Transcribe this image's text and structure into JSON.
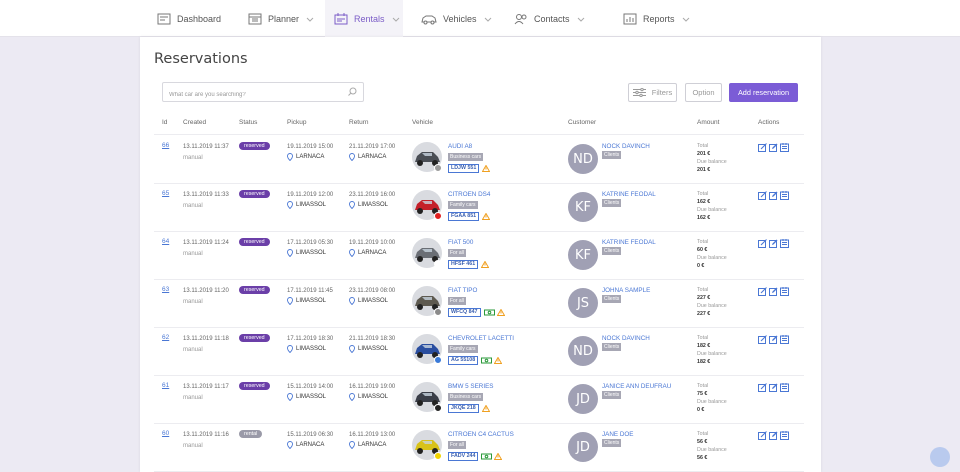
{
  "nav": {
    "items": [
      {
        "label": "Dashboard",
        "icon": "dashboard-icon"
      },
      {
        "label": "Planner",
        "icon": "planner-icon"
      },
      {
        "label": "Rentals",
        "icon": "rentals-icon",
        "active": true
      },
      {
        "label": "Vehicles",
        "icon": "car-icon"
      },
      {
        "label": "Contacts",
        "icon": "contacts-icon"
      },
      {
        "label": "Reports",
        "icon": "reports-icon"
      }
    ]
  },
  "page": {
    "title": "Reservations",
    "search_placeholder": "What car are you searching?",
    "filters_label": "Filters",
    "option_label": "Option",
    "add_label": "Add reservation"
  },
  "table": {
    "headers": [
      "Id",
      "Created",
      "Status",
      "Pickup",
      "Return",
      "Vehicle",
      "Customer",
      "Amount",
      "Actions"
    ],
    "amount_labels": {
      "total": "Total",
      "due": "Due balance"
    },
    "rows": [
      {
        "id": "66",
        "created": "13.11.2019 11:37",
        "created_by": "manual",
        "status": "reserved",
        "pickup_date": "19.11.2019 15:00",
        "pickup_place": "LARNACA",
        "return_date": "21.11.2019 17:00",
        "return_place": "LARNACA",
        "car": "AUDI A8",
        "category": "Business cars",
        "plate": "LDJW 551",
        "car_color": "#4a4e55",
        "dot_color": "#9a9a9a",
        "money": false,
        "initials": "ND",
        "customer": "NOCK DAVINCH",
        "customer_tag": "Clients",
        "total": "201 €",
        "due": "201 €"
      },
      {
        "id": "65",
        "created": "13.11.2019 11:33",
        "created_by": "manual",
        "status": "reserved",
        "pickup_date": "19.11.2019 12:00",
        "pickup_place": "LIMASSOL",
        "return_date": "23.11.2019 16:00",
        "return_place": "LIMASSOL",
        "car": "CITROEN DS4",
        "category": "Family cars",
        "plate": "FGAA 851",
        "car_color": "#c4202a",
        "dot_color": "#e02020",
        "money": false,
        "initials": "KF",
        "customer": "KATRINE FEODAL",
        "customer_tag": "Clients",
        "total": "162 €",
        "due": "162 €"
      },
      {
        "id": "64",
        "created": "13.11.2019 11:24",
        "created_by": "manual",
        "status": "reserved",
        "pickup_date": "17.11.2019 05:30",
        "pickup_place": "LIMASSOL",
        "return_date": "19.11.2019 10:00",
        "return_place": "LARNACA",
        "car": "FIAT 500",
        "category": "For all",
        "plate": "HFSF 461",
        "car_color": "#6a6e75",
        "dot_color": "#ffffff",
        "money": false,
        "initials": "KF",
        "customer": "KATRINE FEODAL",
        "customer_tag": "Clients",
        "total": "60 €",
        "due": "0 €"
      },
      {
        "id": "63",
        "created": "13.11.2019 11:20",
        "created_by": "manual",
        "status": "reserved",
        "pickup_date": "17.11.2019 11:45",
        "pickup_place": "LIMASSOL",
        "return_date": "23.11.2019 08:00",
        "return_place": "LIMASSOL",
        "car": "FIAT TIPO",
        "category": "For all",
        "plate": "WFCQ 847",
        "car_color": "#5e5a50",
        "dot_color": "#8a8a8a",
        "money": true,
        "initials": "JS",
        "customer": "JOHNA SAMPLE",
        "customer_tag": "Clients",
        "total": "227 €",
        "due": "227 €"
      },
      {
        "id": "62",
        "created": "13.11.2019 11:18",
        "created_by": "manual",
        "status": "reserved",
        "pickup_date": "17.11.2019 18:30",
        "pickup_place": "LIMASSOL",
        "return_date": "21.11.2019 18:30",
        "return_place": "LIMASSOL",
        "car": "CHEVROLET LACETTI",
        "category": "Family cars",
        "plate": "AG 55108",
        "car_color": "#2a4ea0",
        "dot_color": "#3a7ad8",
        "money": true,
        "initials": "ND",
        "customer": "NOCK DAVINCH",
        "customer_tag": "Clients",
        "total": "182 €",
        "due": "182 €"
      },
      {
        "id": "61",
        "created": "13.11.2019 11:17",
        "created_by": "manual",
        "status": "reserved",
        "pickup_date": "15.11.2019 14:00",
        "pickup_place": "LIMASSOL",
        "return_date": "16.11.2019 19:00",
        "return_place": "LIMASSOL",
        "car": "BMW 5 SERIES",
        "category": "Business cars",
        "plate": "JKQE 218",
        "car_color": "#3a3e48",
        "dot_color": "#222222",
        "money": false,
        "initials": "JD",
        "customer": "JANICE ANN DEUFRAU",
        "customer_tag": "Clients",
        "total": "75 €",
        "due": "0 €"
      },
      {
        "id": "60",
        "created": "13.11.2019 11:16",
        "created_by": "manual",
        "status": "rental",
        "pickup_date": "15.11.2019 06:30",
        "pickup_place": "LARNACA",
        "return_date": "16.11.2019 13:00",
        "return_place": "LARNACA",
        "car": "CITROEN C4 CACTUS",
        "category": "For all",
        "plate": "FADV 244",
        "car_color": "#d8c21a",
        "dot_color": "#f2d400",
        "money": true,
        "initials": "JD",
        "customer": "JANE DOE",
        "customer_tag": "Clients",
        "total": "56 €",
        "due": "56 €"
      }
    ]
  },
  "colors": {
    "accent": "#7b5cd6",
    "reserved_badge": "#6b3fa8",
    "rental_badge": "#9a9aa8",
    "link": "#4a77d4"
  }
}
